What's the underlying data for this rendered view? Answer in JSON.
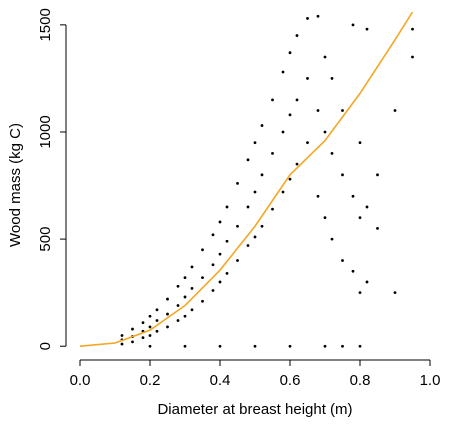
{
  "chart_data": {
    "type": "scatter",
    "xlabel": "Diameter at breast height (m)",
    "ylabel": "Wood mass (kg C)",
    "xlim": [
      -0.04,
      1.04
    ],
    "ylim": [
      -55,
      1560
    ],
    "xticks": [
      {
        "value": 0,
        "label": "0.0"
      },
      0.2,
      0.4,
      0.6,
      0.8,
      {
        "value": 1,
        "label": "1.0"
      }
    ],
    "yticks": [
      0,
      500,
      1000,
      1500
    ],
    "series": [
      {
        "type": "scatter",
        "color": "#000000",
        "x": [
          0.12,
          0.12,
          0.12,
          0.15,
          0.15,
          0.15,
          0.18,
          0.18,
          0.18,
          0.2,
          0.2,
          0.2,
          0.22,
          0.22,
          0.22,
          0.25,
          0.25,
          0.25,
          0.28,
          0.28,
          0.28,
          0.3,
          0.3,
          0.3,
          0.32,
          0.32,
          0.32,
          0.35,
          0.35,
          0.35,
          0.38,
          0.38,
          0.38,
          0.4,
          0.4,
          0.4,
          0.42,
          0.42,
          0.42,
          0.45,
          0.45,
          0.45,
          0.48,
          0.48,
          0.48,
          0.5,
          0.5,
          0.5,
          0.52,
          0.52,
          0.52,
          0.55,
          0.55,
          0.55,
          0.58,
          0.58,
          0.58,
          0.6,
          0.6,
          0.6,
          0.62,
          0.62,
          0.62,
          0.65,
          0.65,
          0.65,
          0.68,
          0.68,
          0.68,
          0.7,
          0.7,
          0.7,
          0.72,
          0.72,
          0.72,
          0.75,
          0.75,
          0.75,
          0.78,
          0.78,
          0.78,
          0.8,
          0.8,
          0.8,
          0.82,
          0.82,
          0.82,
          0.85,
          0.85,
          0.9,
          0.9,
          0.95,
          0.95,
          0.2,
          0.3,
          0.4,
          0.5,
          0.6,
          0.7,
          0.75,
          0.8
        ],
        "values": [
          10,
          30,
          50,
          20,
          45,
          80,
          40,
          70,
          110,
          50,
          90,
          140,
          70,
          120,
          170,
          90,
          150,
          220,
          120,
          190,
          280,
          140,
          230,
          320,
          170,
          270,
          370,
          210,
          320,
          450,
          260,
          380,
          520,
          300,
          430,
          580,
          340,
          490,
          650,
          400,
          560,
          760,
          470,
          650,
          870,
          510,
          720,
          950,
          560,
          800,
          1030,
          640,
          900,
          1150,
          720,
          1000,
          1280,
          780,
          1080,
          1370,
          850,
          1150,
          1450,
          950,
          1250,
          1530,
          700,
          1100,
          1540,
          600,
          1000,
          1350,
          500,
          900,
          1250,
          400,
          800,
          1100,
          350,
          700,
          1500,
          250,
          600,
          950,
          300,
          650,
          1480,
          550,
          800,
          250,
          1100,
          1350,
          1480,
          0,
          0,
          0,
          0,
          0,
          0,
          0,
          0
        ]
      },
      {
        "type": "line",
        "color": "#f5a623",
        "x": [
          0,
          0.1,
          0.2,
          0.3,
          0.4,
          0.5,
          0.6,
          0.7,
          0.8,
          0.9,
          0.95
        ],
        "values": [
          0,
          15,
          75,
          190,
          355,
          560,
          800,
          960,
          1180,
          1430,
          1560
        ]
      }
    ]
  }
}
